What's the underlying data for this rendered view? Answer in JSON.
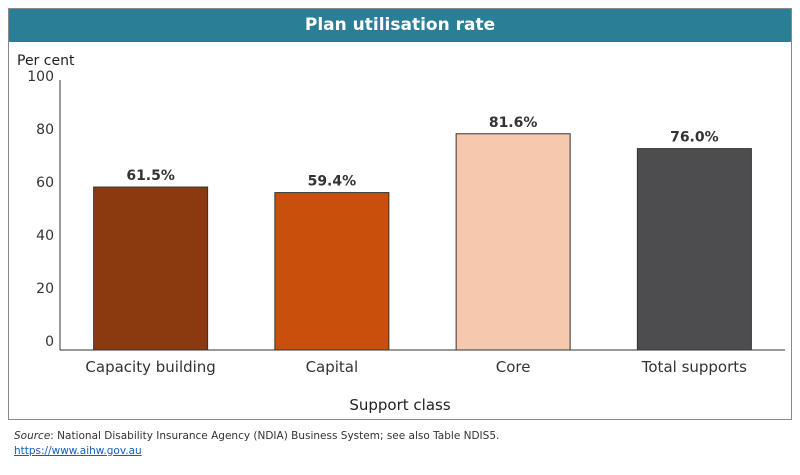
{
  "chart_data": {
    "type": "bar",
    "title": "Plan utilisation rate",
    "ylabel": "Per cent",
    "xlabel": "Support class",
    "ylim": [
      0,
      100
    ],
    "yticks": [
      0,
      20,
      40,
      60,
      80,
      100
    ],
    "categories": [
      "Capacity building",
      "Capital",
      "Core",
      "Total supports"
    ],
    "values": [
      61.5,
      59.4,
      81.6,
      76.0
    ],
    "value_labels": [
      "61.5%",
      "59.4%",
      "81.6%",
      "76.0%"
    ],
    "colors": [
      "#8b3a0f",
      "#c94f0c",
      "#f6c8ad",
      "#4d4d4f"
    ],
    "grid": false,
    "legend": "none"
  },
  "footer": {
    "source_label": "Source",
    "source_text": ": National Disability Insurance Agency (NDIA) Business System; see also Table NDIS5.",
    "link": "https://www.aihw.gov.au"
  }
}
